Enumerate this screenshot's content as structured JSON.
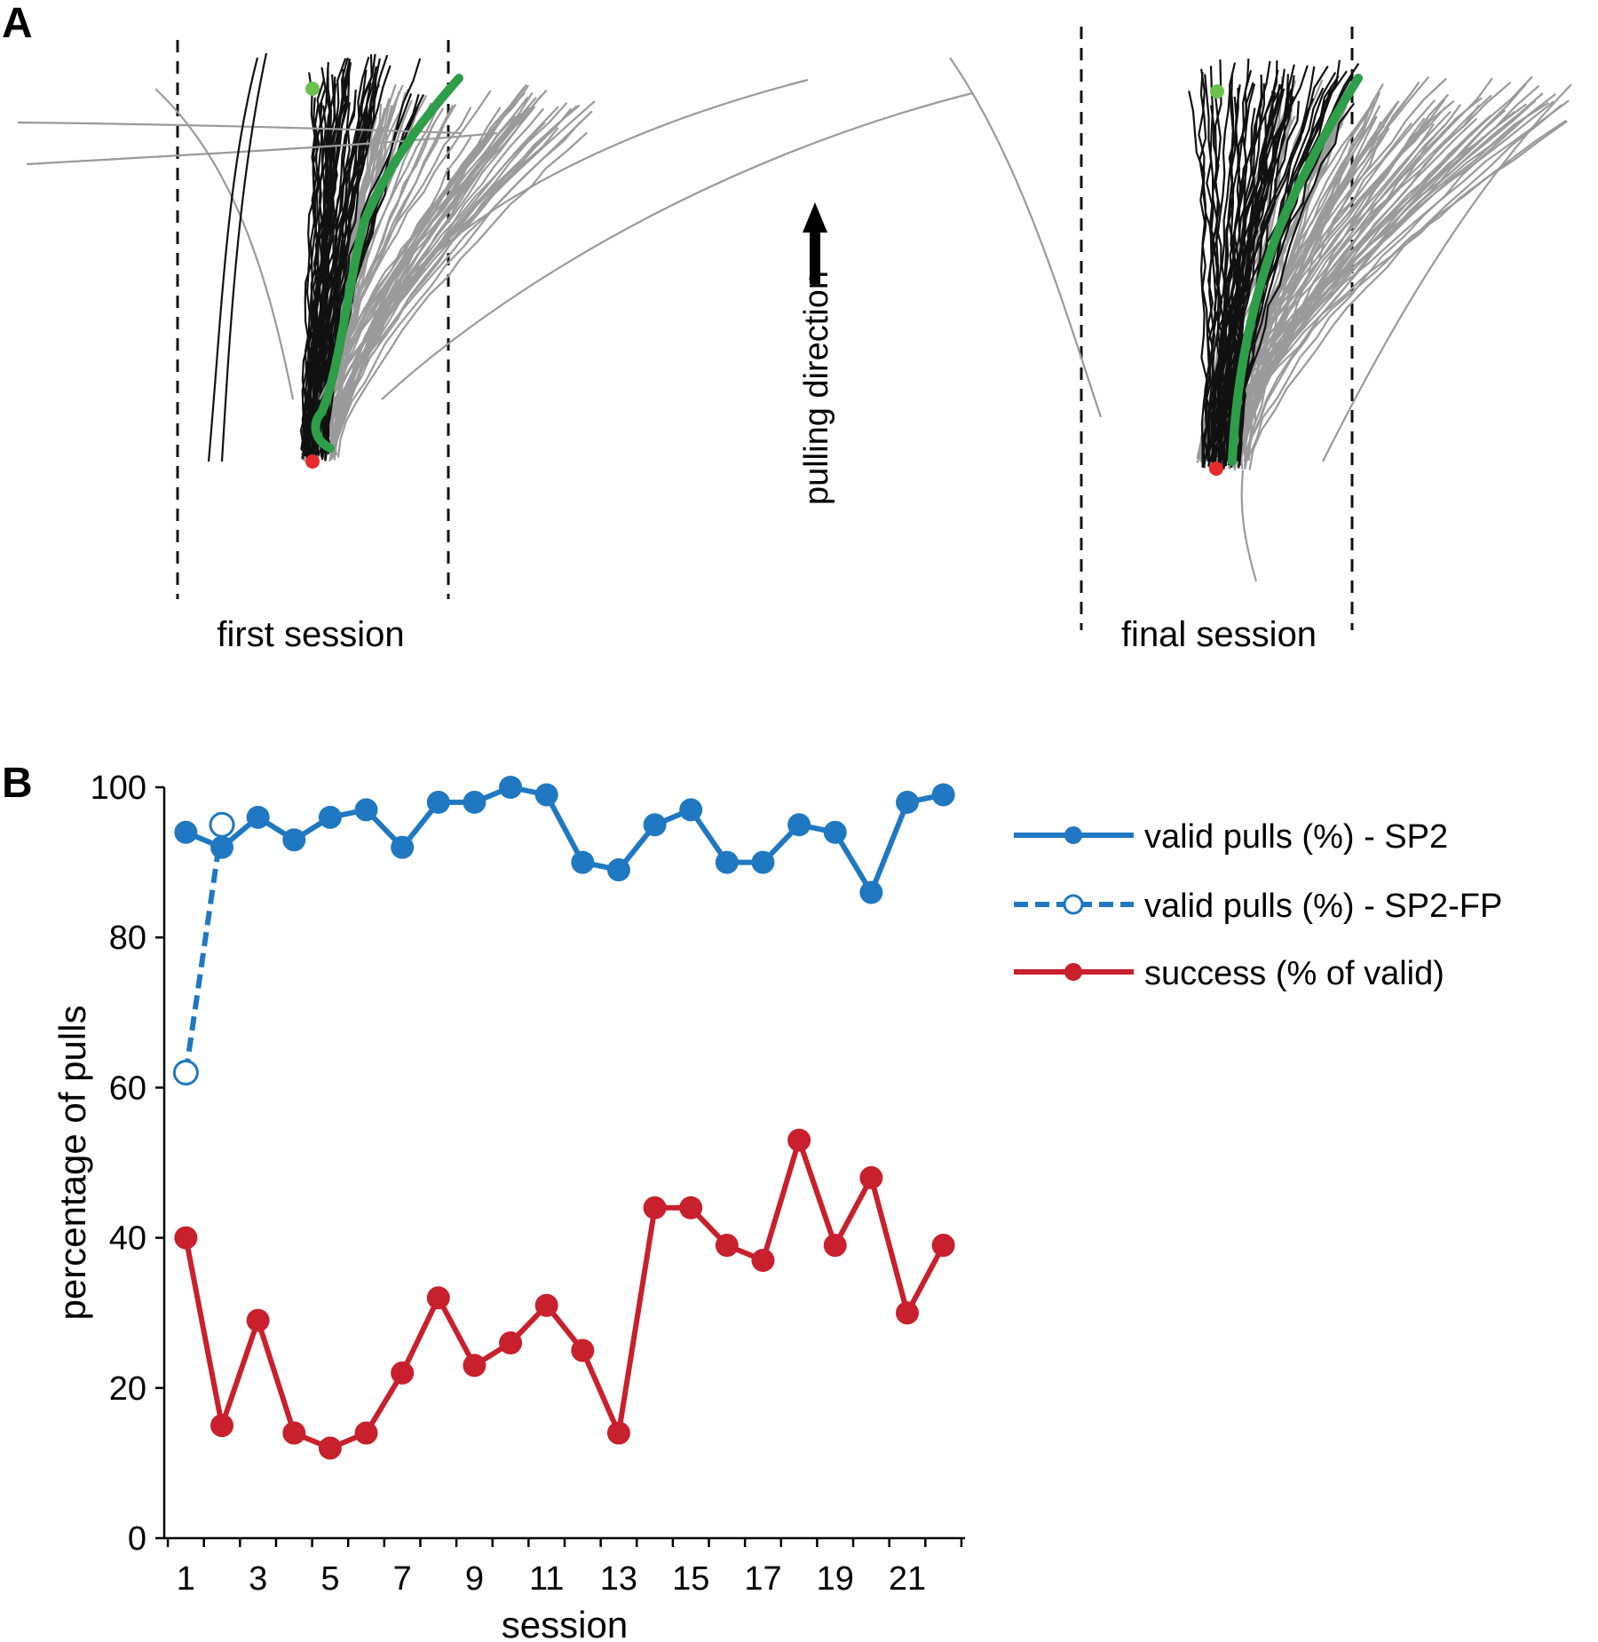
{
  "panel_a": {
    "label": "A",
    "first_label": "first session",
    "final_label": "final session",
    "direction_label": "pulling direction",
    "colors": {
      "trace_black": "#111111",
      "trace_gray": "#9a9a9a",
      "mean_green": "#2e9e48",
      "start_red": "#e8292b",
      "end_green": "#6cc24a"
    }
  },
  "panel_b": {
    "label": "B"
  },
  "chart_data": {
    "type": "line",
    "title": "",
    "xlabel": "session",
    "ylabel": "percentage of pulls",
    "xlim": [
      0.4,
      22.6
    ],
    "ylim": [
      0,
      100
    ],
    "yticks": [
      0,
      20,
      40,
      60,
      80,
      100
    ],
    "xticks": [
      1,
      3,
      5,
      7,
      9,
      11,
      13,
      15,
      17,
      19,
      21
    ],
    "grid": false,
    "legend_position": "top-right",
    "series": [
      {
        "name": "valid pulls (%) - SP2",
        "color": "#1f78c1",
        "style": "solid",
        "marker": "filled",
        "x": [
          1,
          2,
          3,
          4,
          5,
          6,
          7,
          8,
          9,
          10,
          11,
          12,
          13,
          14,
          15,
          16,
          17,
          18,
          19,
          20,
          21,
          22
        ],
        "values": [
          94,
          92,
          96,
          93,
          96,
          97,
          92,
          98,
          98,
          100,
          99,
          90,
          89,
          95,
          97,
          90,
          90,
          95,
          94,
          86,
          98,
          99
        ]
      },
      {
        "name": "valid pulls (%) - SP2-FP",
        "color": "#1f78c1",
        "style": "dashed",
        "marker": "open",
        "x": [
          1,
          2
        ],
        "values": [
          62,
          95
        ]
      },
      {
        "name": "success (% of valid)",
        "color": "#c8202c",
        "style": "solid",
        "marker": "filled",
        "x": [
          1,
          2,
          3,
          4,
          5,
          6,
          7,
          8,
          9,
          10,
          11,
          12,
          13,
          14,
          15,
          16,
          17,
          18,
          19,
          20,
          21,
          22
        ],
        "values": [
          40,
          15,
          29,
          14,
          12,
          14,
          22,
          32,
          23,
          26,
          31,
          25,
          14,
          44,
          44,
          39,
          37,
          53,
          39,
          48,
          30,
          39
        ]
      }
    ]
  }
}
